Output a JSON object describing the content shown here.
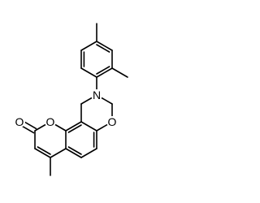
{
  "atoms": [
    "N",
    "O",
    "O",
    "O"
  ]
}
